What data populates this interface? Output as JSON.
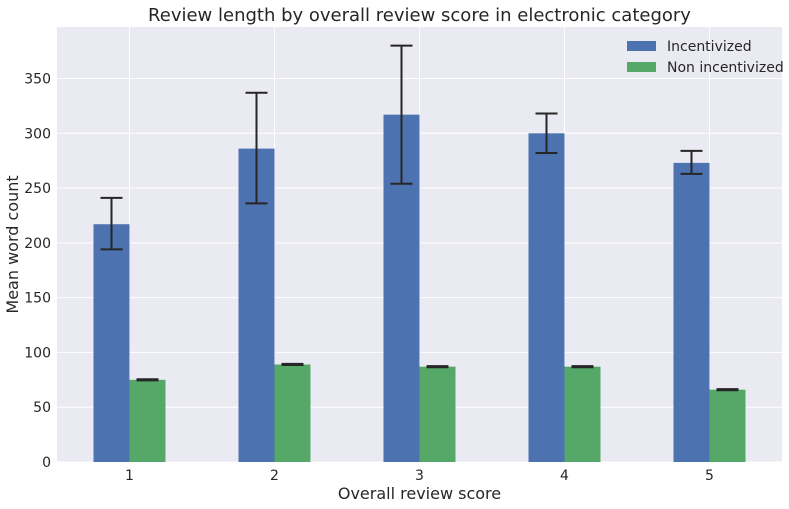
{
  "chart_data": {
    "type": "bar",
    "title": "Review length by overall review score in electronic category",
    "xlabel": "Overall review score",
    "ylabel": "Mean word count",
    "categories": [
      "1",
      "2",
      "3",
      "4",
      "5"
    ],
    "ylim": [
      0,
      397
    ],
    "yticks": [
      0,
      50,
      100,
      150,
      200,
      250,
      300,
      350
    ],
    "grid": true,
    "legend_position": "top-right",
    "series": [
      {
        "name": "Incentivized",
        "color": "#4c72b0",
        "values": [
          217,
          286,
          317,
          300,
          273
        ],
        "error_low": [
          194,
          236,
          254,
          282,
          263
        ],
        "error_high": [
          241,
          337,
          380,
          318,
          284
        ]
      },
      {
        "name": "Non incentivized",
        "color": "#55a868",
        "values": [
          75,
          89,
          87,
          87,
          66
        ],
        "error_low": [
          74.5,
          88.5,
          86.5,
          86.5,
          65.5
        ],
        "error_high": [
          75.5,
          89.5,
          87.5,
          87.5,
          66.5
        ]
      }
    ],
    "colors": {
      "plot_background": "#eaeaf2",
      "grid": "#ffffff",
      "error_bar": "#262626",
      "text": "#262626"
    }
  }
}
